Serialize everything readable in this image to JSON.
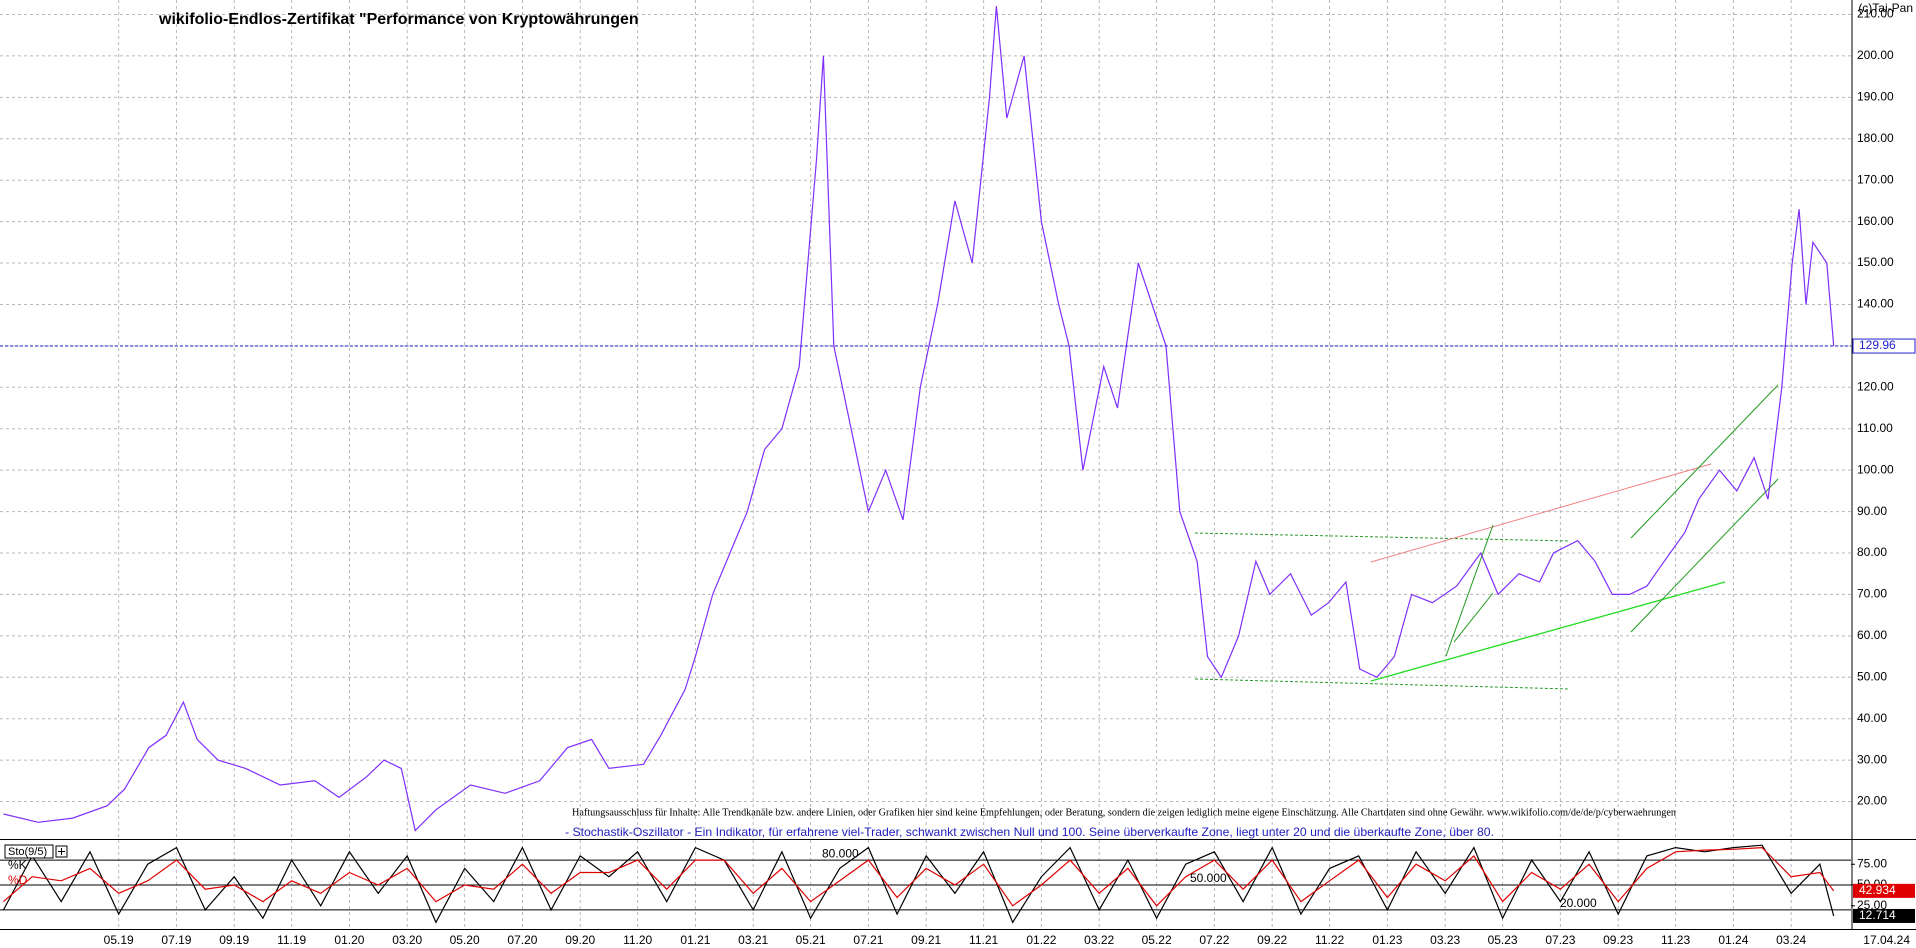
{
  "chart_data": [
    {
      "type": "line",
      "title": "wikifolio-Endlos-Zertifikat \"Performance von Kryptowährungen",
      "credit": "(c)Tai-Pan",
      "disclaimer": "Haftungsausschluss für Inhalte: Alle Trendkanäle bzw. andere Linien, oder Grafiken hier sind keine Empfehlungen, oder Beratung, sondern die zeigen lediglich meine eigene Einschätzung. Alle Chartdaten sind ohne Gewähr. www.wikifolio.com/de/de/p/cyberwaehrungen",
      "date_label": "17.04.24",
      "x": [
        2019.0,
        2019.1,
        2019.2,
        2019.3,
        2019.35,
        2019.42,
        2019.47,
        2019.52,
        2019.56,
        2019.62,
        2019.7,
        2019.8,
        2019.9,
        2019.97,
        2020.05,
        2020.1,
        2020.15,
        2020.19,
        2020.25,
        2020.35,
        2020.45,
        2020.55,
        2020.63,
        2020.7,
        2020.75,
        2020.85,
        2020.9,
        2020.97,
        2021.0,
        2021.05,
        2021.1,
        2021.15,
        2021.2,
        2021.25,
        2021.3,
        2021.35,
        2021.37,
        2021.4,
        2021.45,
        2021.5,
        2021.55,
        2021.6,
        2021.65,
        2021.7,
        2021.75,
        2021.8,
        2021.85,
        2021.87,
        2021.9,
        2021.95,
        2022.0,
        2022.05,
        2022.08,
        2022.12,
        2022.18,
        2022.22,
        2022.28,
        2022.32,
        2022.36,
        2022.4,
        2022.45,
        2022.48,
        2022.52,
        2022.57,
        2022.62,
        2022.66,
        2022.72,
        2022.78,
        2022.83,
        2022.88,
        2022.92,
        2022.97,
        2023.02,
        2023.07,
        2023.13,
        2023.2,
        2023.27,
        2023.32,
        2023.38,
        2023.44,
        2023.48,
        2023.55,
        2023.6,
        2023.65,
        2023.7,
        2023.75,
        2023.8,
        2023.86,
        2023.9,
        2023.96,
        2024.01,
        2024.06,
        2024.1,
        2024.14,
        2024.17,
        2024.19,
        2024.21,
        2024.23,
        2024.27,
        2024.29
      ],
      "series": [
        {
          "color": "#7f2fff",
          "values": [
            17,
            15,
            16,
            19,
            23,
            33,
            36,
            44,
            35,
            30,
            28,
            24,
            25,
            21,
            26,
            30,
            28,
            13,
            18,
            24,
            22,
            25,
            33,
            35,
            28,
            29,
            36,
            47,
            55,
            70,
            80,
            90,
            105,
            110,
            125,
            175,
            200,
            130,
            110,
            90,
            100,
            88,
            120,
            140,
            165,
            150,
            190,
            212,
            185,
            200,
            160,
            140,
            130,
            100,
            125,
            115,
            150,
            140,
            130,
            90,
            78,
            55,
            50,
            60,
            78,
            70,
            75,
            65,
            68,
            73,
            52,
            50,
            55,
            70,
            68,
            72,
            80,
            70,
            75,
            73,
            80,
            83,
            78,
            70,
            70,
            72,
            78,
            85,
            93,
            100,
            95,
            103,
            93,
            120,
            150,
            163,
            140,
            155,
            150,
            129.96
          ]
        }
      ],
      "xlim": [
        2018.99,
        2024.34
      ],
      "xticks": [
        {
          "value": 2019.333,
          "label": "05.19"
        },
        {
          "value": 2019.5,
          "label": "07.19"
        },
        {
          "value": 2019.667,
          "label": "09.19"
        },
        {
          "value": 2019.833,
          "label": "11.19"
        },
        {
          "value": 2020.0,
          "label": "01.20"
        },
        {
          "value": 2020.167,
          "label": "03.20"
        },
        {
          "value": 2020.333,
          "label": "05.20"
        },
        {
          "value": 2020.5,
          "label": "07.20"
        },
        {
          "value": 2020.667,
          "label": "09.20"
        },
        {
          "value": 2020.833,
          "label": "11.20"
        },
        {
          "value": 2021.0,
          "label": "01.21"
        },
        {
          "value": 2021.167,
          "label": "03.21"
        },
        {
          "value": 2021.333,
          "label": "05.21"
        },
        {
          "value": 2021.5,
          "label": "07.21"
        },
        {
          "value": 2021.667,
          "label": "09.21"
        },
        {
          "value": 2021.833,
          "label": "11.21"
        },
        {
          "value": 2022.0,
          "label": "01.22"
        },
        {
          "value": 2022.167,
          "label": "03.22"
        },
        {
          "value": 2022.333,
          "label": "05.22"
        },
        {
          "value": 2022.5,
          "label": "07.22"
        },
        {
          "value": 2022.667,
          "label": "09.22"
        },
        {
          "value": 2022.833,
          "label": "11.22"
        },
        {
          "value": 2023.0,
          "label": "01.23"
        },
        {
          "value": 2023.167,
          "label": "03.23"
        },
        {
          "value": 2023.333,
          "label": "05.23"
        },
        {
          "value": 2023.5,
          "label": "07.23"
        },
        {
          "value": 2023.667,
          "label": "09.23"
        },
        {
          "value": 2023.833,
          "label": "11.23"
        },
        {
          "value": 2024.0,
          "label": "01.24"
        },
        {
          "value": 2024.167,
          "label": "03.24"
        }
      ],
      "ylim": [
        11.2,
        213.5
      ],
      "yticks": [
        {
          "value": 20,
          "label": "20.00"
        },
        {
          "value": 30,
          "label": "30.00"
        },
        {
          "value": 40,
          "label": "40.00"
        },
        {
          "value": 50,
          "label": "50.00"
        },
        {
          "value": 60,
          "label": "60.00"
        },
        {
          "value": 70,
          "label": "70.00"
        },
        {
          "value": 80,
          "label": "80.00"
        },
        {
          "value": 90,
          "label": "90.00"
        },
        {
          "value": 100,
          "label": "100.00"
        },
        {
          "value": 110,
          "label": "110.00"
        },
        {
          "value": 120,
          "label": "120.00"
        },
        {
          "value": 130,
          "label": "130.00"
        },
        {
          "value": 140,
          "label": "140.00"
        },
        {
          "value": 150,
          "label": "150.00"
        },
        {
          "value": 160,
          "label": "160.00"
        },
        {
          "value": 170,
          "label": "170.00"
        },
        {
          "value": 180,
          "label": "180.00"
        },
        {
          "value": 190,
          "label": "190.00"
        },
        {
          "value": 200,
          "label": "200.00"
        },
        {
          "value": 210,
          "label": "210.00"
        }
      ],
      "grid": true
    },
    {
      "type": "line",
      "title": "Sto(9/5)",
      "description": "- Stochastik-Oszillator - Ein Indikator, für erfahrene viel-Trader, schwankt zwischen Null und 100. Seine überverkaufte Zone, liegt unter 20 und die überkaufte Zone, über 80.",
      "x": [
        2019.0,
        2019.083,
        2019.167,
        2019.25,
        2019.333,
        2019.417,
        2019.5,
        2019.583,
        2019.667,
        2019.75,
        2019.833,
        2019.917,
        2020.0,
        2020.083,
        2020.167,
        2020.25,
        2020.333,
        2020.417,
        2020.5,
        2020.583,
        2020.667,
        2020.75,
        2020.833,
        2020.917,
        2021.0,
        2021.083,
        2021.167,
        2021.25,
        2021.333,
        2021.417,
        2021.5,
        2021.583,
        2021.667,
        2021.75,
        2021.833,
        2021.917,
        2022.0,
        2022.083,
        2022.167,
        2022.25,
        2022.333,
        2022.417,
        2022.5,
        2022.583,
        2022.667,
        2022.75,
        2022.833,
        2022.917,
        2023.0,
        2023.083,
        2023.167,
        2023.25,
        2023.333,
        2023.417,
        2023.5,
        2023.583,
        2023.667,
        2023.75,
        2023.833,
        2023.917,
        2024.0,
        2024.083,
        2024.167,
        2024.25,
        2024.29
      ],
      "series": [
        {
          "name": "%K",
          "color": "#000000",
          "values": [
            20,
            85,
            30,
            90,
            15,
            75,
            95,
            20,
            60,
            10,
            80,
            25,
            90,
            40,
            85,
            5,
            70,
            30,
            95,
            20,
            85,
            60,
            90,
            30,
            95,
            80,
            20,
            90,
            10,
            70,
            95,
            15,
            85,
            40,
            90,
            5,
            60,
            95,
            20,
            80,
            10,
            75,
            90,
            30,
            95,
            15,
            70,
            85,
            20,
            90,
            40,
            95,
            10,
            80,
            30,
            90,
            15,
            85,
            95,
            90,
            95,
            98,
            40,
            75,
            12.714
          ]
        },
        {
          "name": "%D",
          "color": "#e00000",
          "values": [
            30,
            60,
            55,
            70,
            40,
            55,
            80,
            45,
            50,
            30,
            55,
            40,
            65,
            50,
            70,
            30,
            50,
            45,
            75,
            40,
            65,
            65,
            80,
            45,
            80,
            80,
            40,
            70,
            30,
            55,
            80,
            35,
            70,
            50,
            75,
            25,
            50,
            80,
            40,
            70,
            25,
            60,
            80,
            45,
            80,
            30,
            55,
            80,
            35,
            75,
            55,
            85,
            30,
            65,
            45,
            75,
            30,
            70,
            90,
            92,
            93,
            95,
            60,
            65,
            42.934
          ]
        }
      ],
      "xlim": [
        2018.99,
        2024.34
      ],
      "ylim": [
        -3,
        103
      ],
      "yticks": [
        {
          "value": 25,
          "label": "25.00"
        },
        {
          "value": 50,
          "label": "50.00"
        },
        {
          "value": 75,
          "label": "75.00"
        }
      ],
      "levels": [
        {
          "value": 80,
          "label": "80.000"
        },
        {
          "value": 50,
          "label": "50.000"
        },
        {
          "value": 20,
          "label": "20.000"
        }
      ]
    }
  ]
}
